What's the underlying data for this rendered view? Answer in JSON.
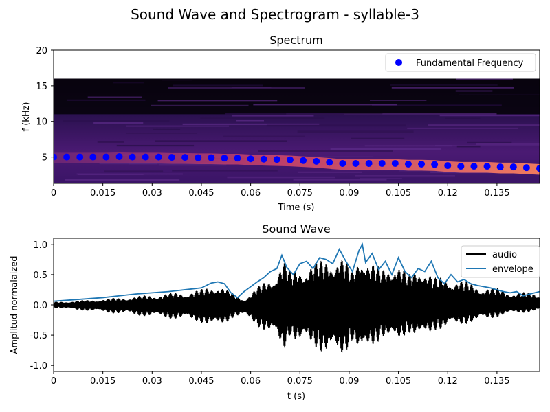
{
  "suptitle": "Sound Wave and Spectrogram - syllable-3",
  "colors": {
    "fundamental_marker": "#0000ff",
    "audio_line": "#000000",
    "envelope_line": "#1f77b4",
    "spectrogram_colormap": "magma"
  },
  "chart_data": [
    {
      "type": "scatter",
      "panel": "spectrogram",
      "title": "Spectrum",
      "xlabel": "Time (s)",
      "ylabel": "f (kHz)",
      "xlim": [
        0,
        0.148
      ],
      "ylim": [
        1.3,
        20
      ],
      "xticks": [
        "0",
        "0.015",
        "0.03",
        "0.045",
        "0.06",
        "0.075",
        "0.09",
        "0.105",
        "0.12",
        "0.135"
      ],
      "yticks": [
        "5",
        "10",
        "15",
        "20"
      ],
      "spectrogram_fmax_khz": 16,
      "legend": {
        "placement": "upper right",
        "entries": [
          "Fundamental Frequency"
        ]
      },
      "series": [
        {
          "name": "Fundamental Frequency",
          "x": [
            0.0,
            0.004,
            0.008,
            0.012,
            0.016,
            0.02,
            0.024,
            0.028,
            0.032,
            0.036,
            0.04,
            0.044,
            0.048,
            0.052,
            0.056,
            0.06,
            0.064,
            0.068,
            0.072,
            0.076,
            0.08,
            0.084,
            0.088,
            0.092,
            0.096,
            0.1,
            0.104,
            0.108,
            0.112,
            0.116,
            0.12,
            0.124,
            0.128,
            0.132,
            0.136,
            0.14,
            0.144,
            0.148
          ],
          "y": [
            5.0,
            5.0,
            5.0,
            5.0,
            5.0,
            5.05,
            5.0,
            5.0,
            5.0,
            4.95,
            4.95,
            4.9,
            4.9,
            4.85,
            4.85,
            4.75,
            4.7,
            4.65,
            4.6,
            4.5,
            4.4,
            4.25,
            4.1,
            4.1,
            4.1,
            4.1,
            4.1,
            4.0,
            4.0,
            3.95,
            3.8,
            3.7,
            3.7,
            3.7,
            3.6,
            3.6,
            3.5,
            3.4
          ]
        }
      ]
    },
    {
      "type": "line",
      "panel": "waveform",
      "title": "Sound Wave",
      "xlabel": "t (s)",
      "ylabel": "Amplitud normalaized",
      "xlim": [
        0,
        0.148
      ],
      "ylim": [
        -1.1,
        1.1
      ],
      "xticks": [
        "0",
        "0.015",
        "0.03",
        "0.045",
        "0.06",
        "0.075",
        "0.09",
        "0.105",
        "0.12",
        "0.135"
      ],
      "yticks": [
        "1.0",
        "0.5",
        "0.0",
        "-0.5",
        "-1.0"
      ],
      "legend": {
        "placement": "upper right",
        "entries": [
          "audio",
          "envelope"
        ]
      },
      "series": [
        {
          "name": "envelope",
          "x": [
            0.0,
            0.005,
            0.01,
            0.015,
            0.02,
            0.025,
            0.03,
            0.035,
            0.04,
            0.045,
            0.048,
            0.05,
            0.052,
            0.054,
            0.056,
            0.058,
            0.06,
            0.062,
            0.064,
            0.066,
            0.068,
            0.0695,
            0.071,
            0.073,
            0.075,
            0.077,
            0.079,
            0.081,
            0.083,
            0.085,
            0.087,
            0.089,
            0.091,
            0.093,
            0.094,
            0.095,
            0.097,
            0.099,
            0.101,
            0.103,
            0.105,
            0.107,
            0.109,
            0.111,
            0.113,
            0.115,
            0.117,
            0.119,
            0.121,
            0.123,
            0.125,
            0.127,
            0.129,
            0.131,
            0.133,
            0.135,
            0.137,
            0.139,
            0.141,
            0.143,
            0.145,
            0.148
          ],
          "y": [
            0.06,
            0.08,
            0.1,
            0.12,
            0.15,
            0.18,
            0.2,
            0.22,
            0.25,
            0.28,
            0.36,
            0.38,
            0.35,
            0.2,
            0.12,
            0.22,
            0.3,
            0.38,
            0.45,
            0.55,
            0.6,
            0.82,
            0.62,
            0.5,
            0.68,
            0.72,
            0.6,
            0.78,
            0.75,
            0.68,
            0.92,
            0.72,
            0.55,
            0.9,
            1.0,
            0.7,
            0.85,
            0.58,
            0.72,
            0.5,
            0.78,
            0.55,
            0.45,
            0.6,
            0.55,
            0.72,
            0.45,
            0.35,
            0.5,
            0.38,
            0.42,
            0.35,
            0.32,
            0.3,
            0.28,
            0.25,
            0.22,
            0.2,
            0.22,
            0.15,
            0.18,
            0.22
          ]
        },
        {
          "name": "audio",
          "x": [
            0.0,
            0.01,
            0.02,
            0.03,
            0.04,
            0.045,
            0.05,
            0.055,
            0.058,
            0.062,
            0.066,
            0.07,
            0.072,
            0.075,
            0.079,
            0.082,
            0.087,
            0.091,
            0.094,
            0.096,
            0.1,
            0.104,
            0.108,
            0.112,
            0.116,
            0.12,
            0.125,
            0.13,
            0.135,
            0.14,
            0.148
          ],
          "upper": [
            0.05,
            0.08,
            0.12,
            0.17,
            0.22,
            0.26,
            0.36,
            0.18,
            0.1,
            0.3,
            0.45,
            0.78,
            0.55,
            0.65,
            0.72,
            0.74,
            0.9,
            0.55,
            1.0,
            0.75,
            0.6,
            0.78,
            0.5,
            0.7,
            0.45,
            0.48,
            0.4,
            0.32,
            0.28,
            0.22,
            0.2
          ],
          "lower": [
            -0.05,
            -0.1,
            -0.15,
            -0.2,
            -0.25,
            -0.3,
            -0.4,
            -0.2,
            -0.2,
            -0.35,
            -0.5,
            -0.8,
            -0.5,
            -0.72,
            -0.68,
            -0.8,
            -0.95,
            -0.6,
            -1.0,
            -0.75,
            -0.55,
            -0.7,
            -0.45,
            -0.62,
            -0.42,
            -0.4,
            -0.32,
            -0.28,
            -0.2,
            -0.15,
            -0.1
          ]
        }
      ]
    }
  ]
}
